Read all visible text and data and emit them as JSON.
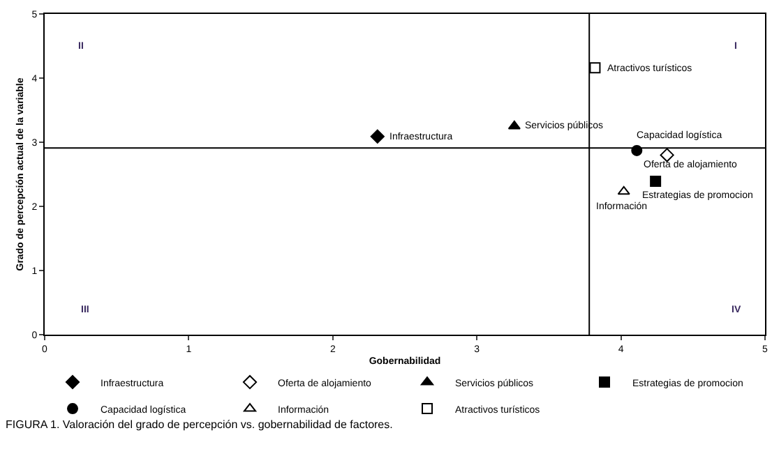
{
  "chart_data": {
    "type": "scatter",
    "xlabel": "Gobernabilidad",
    "ylabel": "Grado de percepción actual de la variable",
    "xlim": [
      0,
      5
    ],
    "xticks": [
      0,
      1,
      2,
      3,
      4,
      5
    ],
    "ylim": [
      0,
      5
    ],
    "yticks": [
      0,
      1,
      2,
      3,
      4,
      5
    ],
    "legend": "bottom",
    "series": [
      {
        "name": "Infraestructura",
        "color": "#000000",
        "marker": "diamond",
        "x": [
          2.31
        ],
        "values": [
          3.09
        ]
      },
      {
        "name": "Oferta de alojamiento",
        "color": "#000000",
        "marker": "diamond-open",
        "x": [
          4.32
        ],
        "values": [
          2.8
        ]
      },
      {
        "name": "Servicios públicos",
        "color": "#000000",
        "marker": "triangle",
        "x": [
          3.26
        ],
        "values": [
          3.25
        ]
      },
      {
        "name": "Estrategias de promocion",
        "color": "#000000",
        "marker": "square",
        "x": [
          4.24
        ],
        "values": [
          2.39
        ]
      },
      {
        "name": "Capacidad logística",
        "color": "#000000",
        "marker": "circle",
        "x": [
          4.11
        ],
        "values": [
          2.87
        ]
      },
      {
        "name": "Información",
        "color": "#000000",
        "marker": "triangle-open",
        "x": [
          4.02
        ],
        "values": [
          2.23
        ]
      },
      {
        "name": "Atractivos turísticos",
        "color": "#000000",
        "marker": "square-open",
        "x": [
          3.82
        ],
        "values": [
          4.16
        ]
      }
    ],
    "ref_lines": [
      {
        "axis": "x",
        "value": 3.78,
        "color": "#000000"
      },
      {
        "axis": "y",
        "value": 2.91,
        "color": "#000000"
      }
    ],
    "annotations": [
      "II",
      "I",
      "III",
      "IV",
      {
        "text": "Infraestructura",
        "x": 2.31,
        "y": 3.09
      },
      {
        "text": "Servicios públicos",
        "x": 3.26,
        "y": 3.25
      },
      {
        "text": "Atractivos turísticos",
        "x": 3.82,
        "y": 4.16
      },
      {
        "text": "Capacidad logística",
        "x": 4.11,
        "y": 2.87
      },
      {
        "text": "Oferta de alojamiento",
        "x": 4.32,
        "y": 2.8
      },
      {
        "text": "Estrategias de promocion",
        "x": 4.24,
        "y": 2.39
      },
      {
        "text": "Información",
        "x": 4.02,
        "y": 2.23
      },
      "FIGURA 1. Valoración del grado de percepción vs. gobernabilidad de factores."
    ]
  }
}
